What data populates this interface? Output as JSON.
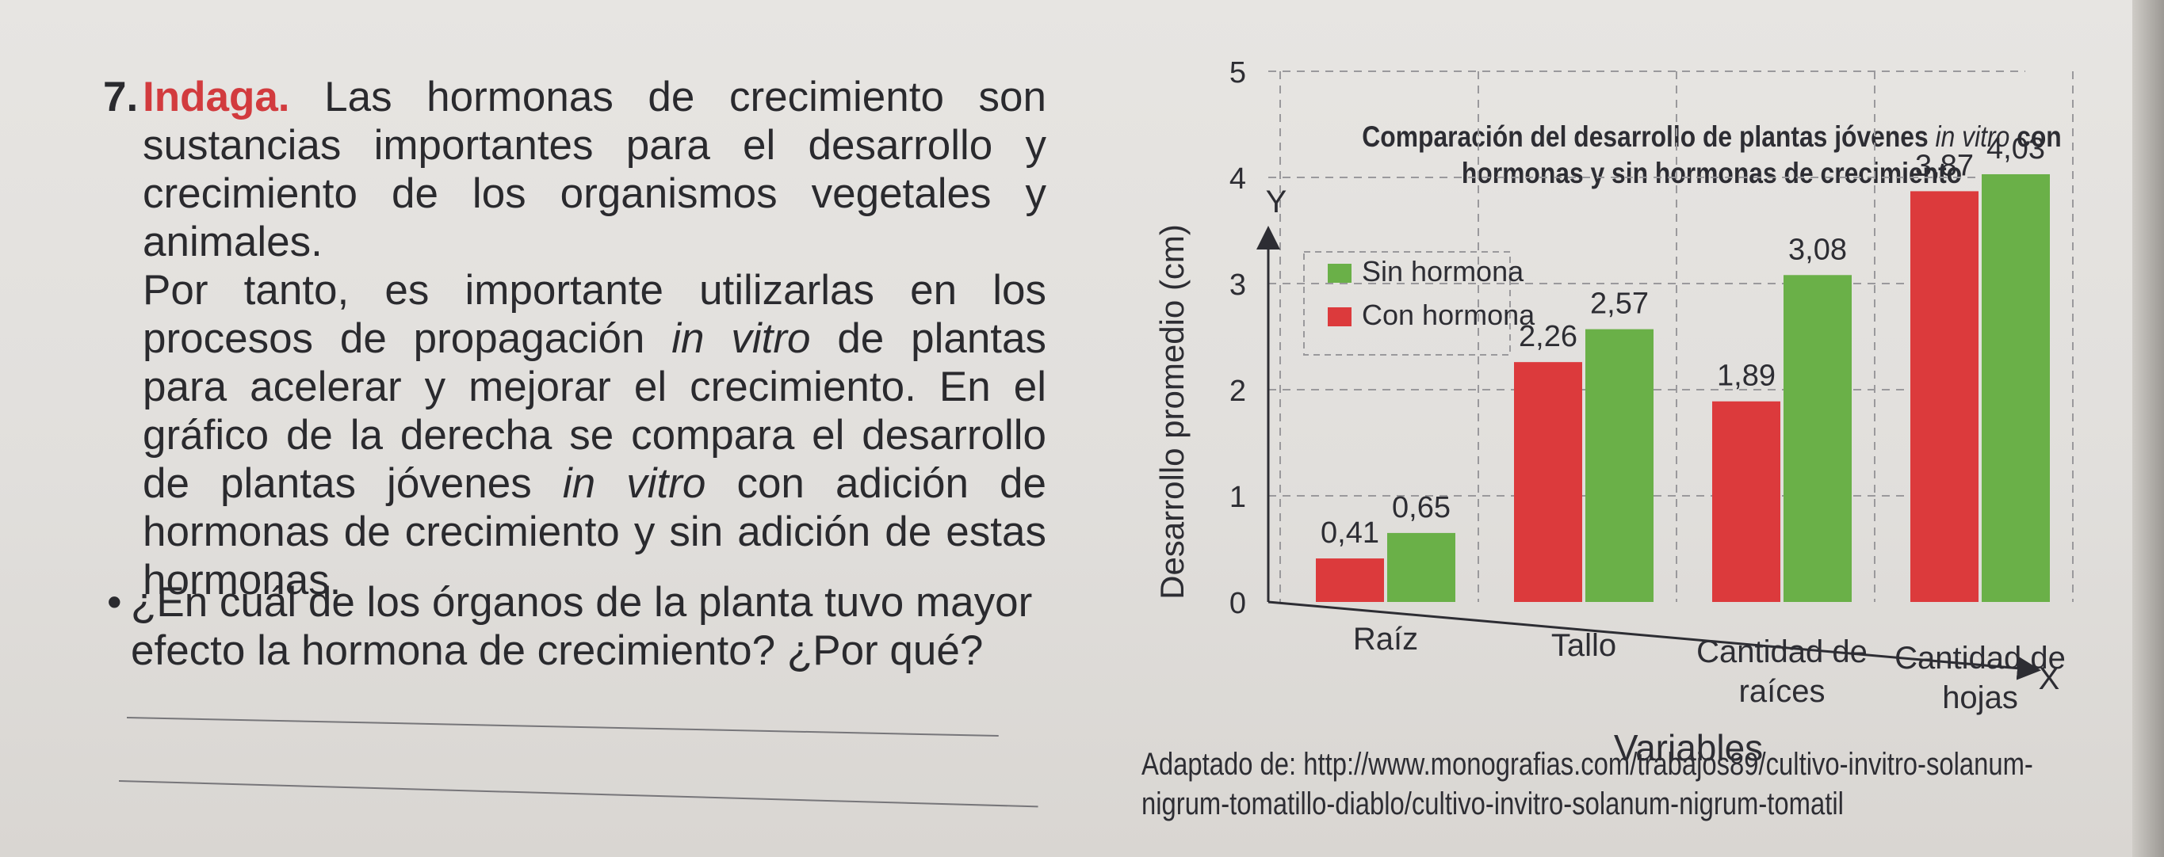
{
  "question": {
    "number": "7.",
    "heading": "Indaga.",
    "paragraph_1": "Las hormonas de crecimiento son sustancias importantes para el desarrollo y crecimiento de los organismos vegetales y animales.",
    "paragraph_2_a": "Por tanto, es importante utilizarlas en los procesos de propagación",
    "paragraph_2_italic_1": "in vitro",
    "paragraph_2_b": "de plantas para acelerar y mejorar el crecimiento. En el gráfico de la derecha se compara el desarrollo de plantas jóvenes",
    "paragraph_2_italic_2": "in vitro",
    "paragraph_2_c": "con adición de hormonas de crecimiento y sin adición de estas hormonas.",
    "bullet": "•",
    "prompt": "¿En cuál de los órganos de la planta tuvo mayor efecto la hormona de crecimiento? ¿Por qué?"
  },
  "caption": {
    "line_1": "Adaptado de: http://www.monografias.com/trabajos89/cultivo-invitro-solanum-",
    "line_2": "nigrum-tomatillo-diablo/cultivo-invitro-solanum-nigrum-tomatil"
  },
  "colors": {
    "sin_hormona": "#6ab048",
    "con_hormona": "#dc3a3c",
    "grid": "#9a999c",
    "axis": "#2d2d33"
  },
  "chart_data": {
    "type": "bar",
    "title_a": "Comparación del desarrollo de plantas jóvenes",
    "title_italic": "in vitro",
    "title_b": "con",
    "title_line_2": "hormonas y sin hormonas de crecimiento",
    "y_axis_letter": "Y",
    "x_axis_letter": "X",
    "ylabel": "Desarrollo promedio (cm)",
    "xlabel": "Variables",
    "ylim": [
      0,
      5
    ],
    "yticks": [
      "0",
      "1",
      "2",
      "3",
      "4",
      "5"
    ],
    "grid": true,
    "legend_position": "top-left",
    "categories": [
      [
        "Raíz"
      ],
      [
        "Tallo"
      ],
      [
        "Cantidad de",
        "raíces"
      ],
      [
        "Cantidad de",
        "hojas"
      ]
    ],
    "series": [
      {
        "name": "Con hormona",
        "values": [
          0.41,
          2.26,
          1.89,
          3.87
        ],
        "labels": [
          "0,41",
          "2,26",
          "1,89",
          "3,87"
        ]
      },
      {
        "name": "Sin hormona",
        "values": [
          0.65,
          2.57,
          3.08,
          4.03
        ],
        "labels": [
          "0,65",
          "2,57",
          "3,08",
          "4,03"
        ]
      }
    ],
    "legend": [
      "Sin hormona",
      "Con hormona"
    ]
  }
}
